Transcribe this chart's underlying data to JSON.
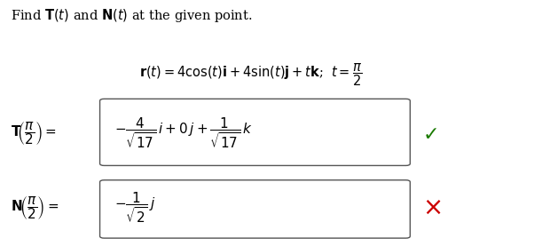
{
  "title": "Find $\\mathbf{T}(t)$ and $\\mathbf{N}(t)$ at the given point.",
  "equation": "$\\mathbf{r}(t) = 4\\cos(t)\\mathbf{i} + 4\\sin(t)\\mathbf{j} + t\\mathbf{k}$;  $t = \\dfrac{\\pi}{2}$",
  "T_label": "$\\mathbf{T}\\!\\left(\\dfrac{\\pi}{2}\\right) = $",
  "T_content": "$-\\dfrac{4}{\\sqrt{17}}\\, i + 0\\, j + \\dfrac{1}{\\sqrt{17}}\\, k$",
  "N_label": "$\\mathbf{N}\\!\\left(\\dfrac{\\pi}{2}\\right) = $",
  "N_content": "$-\\dfrac{1}{\\sqrt{2}}\\, j$",
  "bg_color": "#ffffff",
  "text_color": "#000000",
  "check_color": "#1a7a00",
  "cross_color": "#cc0000",
  "box_edge_color": "#555555",
  "fontsize_title": 10.5,
  "fontsize_eq": 10.5,
  "fontsize_label": 11,
  "fontsize_content": 11,
  "fontsize_symbol": 14
}
